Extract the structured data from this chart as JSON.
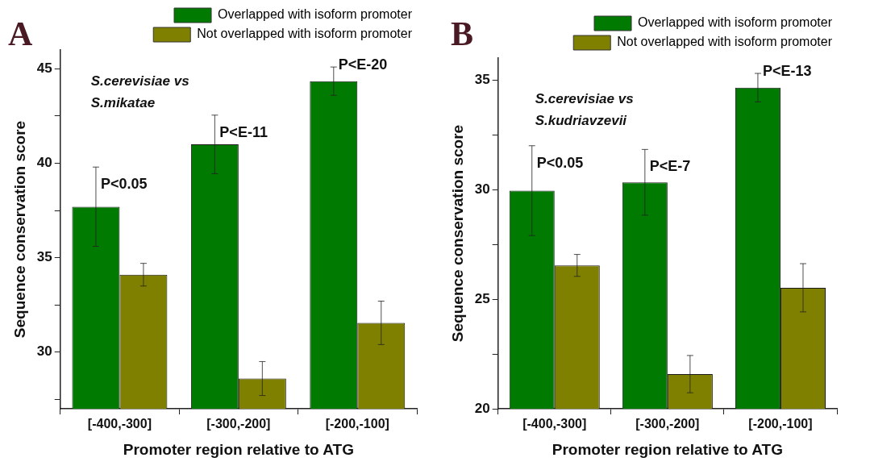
{
  "chart_data": [
    {
      "type": "bar",
      "title": "A",
      "xlabel": "Promoter region relative to ATG",
      "ylabel": "Sequence conservation score",
      "categories": [
        "[-400,-300]",
        "[-300,-200]",
        "[-200,-100]"
      ],
      "series": [
        {
          "name": "Overlapped with isoform promoter",
          "color": "#007a00",
          "values": [
            37.7,
            41.0,
            44.35
          ],
          "errors": [
            2.1,
            1.55,
            0.75
          ]
        },
        {
          "name": "Not overlapped with isoform promoter",
          "color": "#808000",
          "values": [
            34.1,
            28.6,
            31.55
          ],
          "errors": [
            0.6,
            0.9,
            1.15
          ]
        }
      ],
      "ylim": [
        27,
        46
      ],
      "yticks": [
        {
          "value": 27.5,
          "label": null
        },
        30,
        {
          "value": 32.5,
          "label": null
        },
        35,
        {
          "value": 37.5,
          "label": null
        },
        40,
        {
          "value": 42.5,
          "label": null
        },
        45
      ],
      "grid": false,
      "legend": "top right",
      "annotations": [
        "S.cerevisiae vs",
        "S.mikatae",
        "P<0.05",
        "P<E-11",
        "P<E-20"
      ]
    },
    {
      "type": "bar",
      "title": "B",
      "xlabel": "Promoter region relative to ATG",
      "ylabel": "Sequence conservation score",
      "categories": [
        "[-400,-300]",
        "[-300,-200]",
        "[-200,-100]"
      ],
      "series": [
        {
          "name": "Overlapped with isoform promoter",
          "color": "#007a00",
          "values": [
            29.95,
            30.33,
            34.65
          ],
          "errors": [
            2.05,
            1.5,
            0.65
          ]
        },
        {
          "name": "Not overlapped with isoform promoter",
          "color": "#808000",
          "values": [
            26.54,
            21.58,
            25.52
          ],
          "errors": [
            0.5,
            0.85,
            1.1
          ]
        }
      ],
      "ylim": [
        20,
        36
      ],
      "yticks": [
        20,
        {
          "value": 22.5,
          "label": null
        },
        25,
        {
          "value": 27.5,
          "label": null
        },
        30,
        {
          "value": 32.5,
          "label": null
        },
        35
      ],
      "grid": false,
      "legend": "top right",
      "annotations": [
        "S.cerevisiae vs",
        "S.kudriavzevii",
        "P<0.05",
        "P<E-7",
        "P<E-13"
      ]
    }
  ]
}
